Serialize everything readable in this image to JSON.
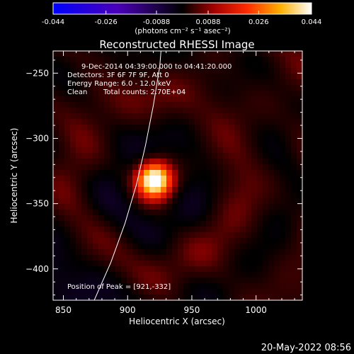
{
  "colorbar": {
    "ticks": [
      "-0.044",
      "-0.026",
      "-0.0088",
      "0.0088",
      "0.026",
      "0.044"
    ],
    "tick_values": [
      -0.044,
      -0.026,
      -0.0088,
      0.0088,
      0.026,
      0.044
    ],
    "range": [
      -0.044,
      0.044
    ],
    "units_label": "(photons cm⁻² s⁻¹ asec⁻²)",
    "colortable": "blue-black-red-yellow-white"
  },
  "chart_data": {
    "type": "heatmap",
    "title": "Reconstructed RHESSI Image",
    "xlabel": "Heliocentric X (arcsec)",
    "ylabel": "Heliocentric Y (arcsec)",
    "xlim": [
      842,
      1036
    ],
    "ylim": [
      -424,
      -233
    ],
    "xticks": [
      850,
      900,
      950,
      1000
    ],
    "xtick_labels": [
      "850",
      "900",
      "950",
      "1000"
    ],
    "yticks": [
      -250,
      -300,
      -350,
      -400
    ],
    "ytick_labels": [
      "−250",
      "−300",
      "−350",
      "−400"
    ],
    "peak": {
      "x": 921,
      "y": -332,
      "value": 0.044
    },
    "limb": {
      "points": [
        [
          874,
          -424
        ],
        [
          887,
          -395
        ],
        [
          898,
          -365
        ],
        [
          907,
          -335
        ],
        [
          914,
          -305
        ],
        [
          920,
          -275
        ],
        [
          925,
          -245
        ],
        [
          926,
          -233
        ]
      ]
    },
    "annotations": {
      "time_range": "9-Dec-2014 04:39:00.000 to 04:41:20.000",
      "detectors": "Detectors: 3F 6F 7F 9F, Att 0",
      "energy_range": "Energy Range: 6.0 - 12.0 keV",
      "clean_label": "Clean",
      "total_counts": "Total counts: 2.70E+04",
      "peak_position": "Position of Peak = [921,-332]"
    },
    "grid": false
  },
  "footer": {
    "date_stamp": "20-May-2022 08:56"
  }
}
